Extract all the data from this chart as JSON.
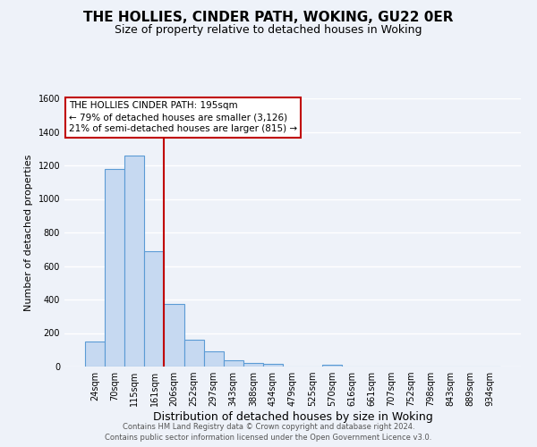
{
  "title": "THE HOLLIES, CINDER PATH, WOKING, GU22 0ER",
  "subtitle": "Size of property relative to detached houses in Woking",
  "xlabel": "Distribution of detached houses by size in Woking",
  "ylabel": "Number of detached properties",
  "bar_labels": [
    "24sqm",
    "70sqm",
    "115sqm",
    "161sqm",
    "206sqm",
    "252sqm",
    "297sqm",
    "343sqm",
    "388sqm",
    "434sqm",
    "479sqm",
    "525sqm",
    "570sqm",
    "616sqm",
    "661sqm",
    "707sqm",
    "752sqm",
    "798sqm",
    "843sqm",
    "889sqm",
    "934sqm"
  ],
  "bar_values": [
    150,
    1180,
    1260,
    690,
    375,
    160,
    90,
    35,
    20,
    15,
    0,
    0,
    10,
    0,
    0,
    0,
    0,
    0,
    0,
    0,
    0
  ],
  "bar_color": "#c6d9f1",
  "bar_edge_color": "#5b9bd5",
  "vline_x_idx": 3.5,
  "vline_color": "#c00000",
  "annotation_title": "THE HOLLIES CINDER PATH: 195sqm",
  "annotation_line1": "← 79% of detached houses are smaller (3,126)",
  "annotation_line2": "21% of semi-detached houses are larger (815) →",
  "annotation_box_color": "#c00000",
  "ylim": [
    0,
    1600
  ],
  "yticks": [
    0,
    200,
    400,
    600,
    800,
    1000,
    1200,
    1400,
    1600
  ],
  "footer_line1": "Contains HM Land Registry data © Crown copyright and database right 2024.",
  "footer_line2": "Contains public sector information licensed under the Open Government Licence v3.0.",
  "bg_color": "#eef2f9",
  "grid_color": "#ffffff",
  "title_fontsize": 11,
  "subtitle_fontsize": 9
}
